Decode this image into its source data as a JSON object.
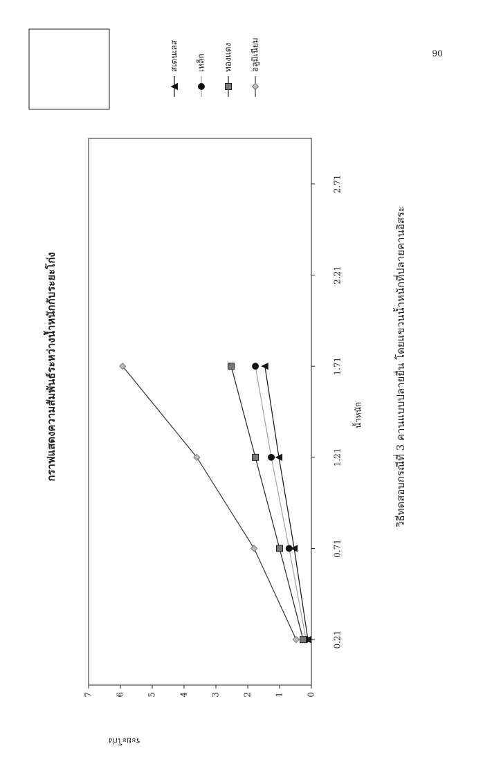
{
  "page_number": "90",
  "chart_data": {
    "type": "line",
    "title": "กราฟแสดงความสัมพันธ์ระหว่างน้ำหนักกับระยะโก่ง",
    "caption": "วิธีทดสอบกรณีที่ 3 คานแบบปลายยื่น โดยแขวนน้ำหนักที่ปลายคานอิสระ",
    "x_label": "น้ำหนัก",
    "y_label": "ระยะโก่ง",
    "x": [
      0.21,
      0.71,
      1.21,
      1.71
    ],
    "xlim": [
      -0.04,
      2.96
    ],
    "xticks": [
      0.21,
      0.71,
      1.21,
      1.71,
      2.21,
      2.71
    ],
    "ylim": [
      0,
      7
    ],
    "yticks": [
      0,
      1,
      2,
      3,
      4,
      5,
      6,
      7
    ],
    "series": [
      {
        "name": "สเตนเลส",
        "color": "#222222",
        "marker": "triangle",
        "values": [
          0.11,
          0.54,
          1.02,
          1.46
        ]
      },
      {
        "name": "เหล็ก",
        "color": "#a8a8a8",
        "marker": "circle",
        "values": [
          0.17,
          0.7,
          1.26,
          1.76
        ]
      },
      {
        "name": "ทองแดง",
        "color": "#333333",
        "marker": "square",
        "values": [
          0.26,
          1.0,
          1.76,
          2.52
        ]
      },
      {
        "name": "อลูมิเนียม",
        "color": "#444444",
        "marker": "diamond",
        "values": [
          0.48,
          1.8,
          3.6,
          5.93
        ]
      }
    ]
  }
}
